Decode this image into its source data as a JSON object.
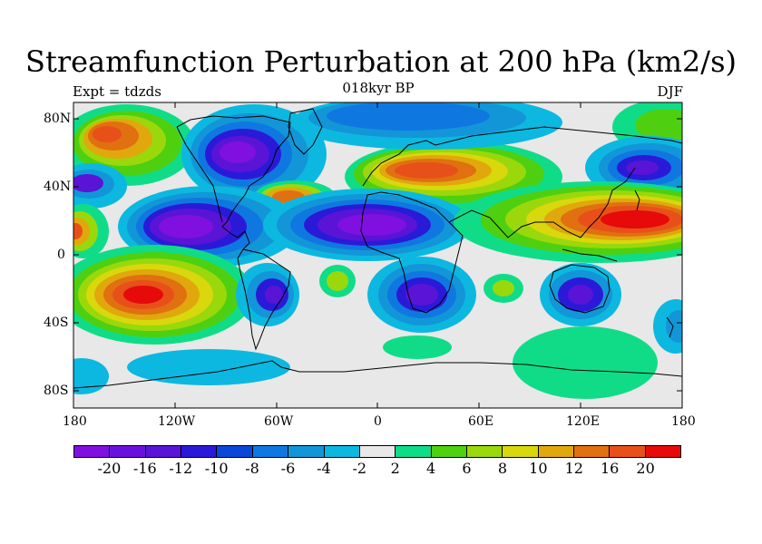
{
  "title": "Streamfunction Perturbation at 200 hPa (km2/s)",
  "subtitle_left": "Expt = tdzds",
  "subtitle_center": "018kyr BP",
  "subtitle_right": "DJF",
  "y_ticks": [
    "80N",
    "40N",
    "0",
    "40S",
    "80S"
  ],
  "x_ticks": [
    "180",
    "120W",
    "60W",
    "0",
    "60E",
    "120E",
    "180"
  ],
  "colorbar": {
    "colors": [
      "#7f10e0",
      "#6a10dc",
      "#5a14d6",
      "#2a1ad8",
      "#0a46d8",
      "#0f78e0",
      "#1296d8",
      "#0cb8e0",
      "#e8e8e8",
      "#10dc88",
      "#4ed010",
      "#9ad80c",
      "#d8d80c",
      "#e0a80c",
      "#e07010",
      "#e8501a",
      "#e60a0a"
    ],
    "labels": [
      "-20",
      "-16",
      "-12",
      "-10",
      "-8",
      "-6",
      "-4",
      "-2",
      "2",
      "4",
      "6",
      "8",
      "10",
      "12",
      "16",
      "20"
    ]
  },
  "colors": {
    "background": "#e8e8e8",
    "coastline": "#000000"
  }
}
